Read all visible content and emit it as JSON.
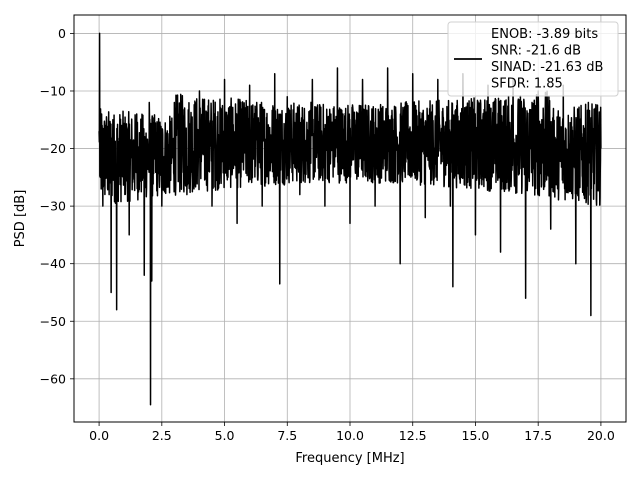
{
  "chart_data": {
    "type": "line",
    "title": "",
    "xlabel": "Frequency [MHz]",
    "ylabel": "PSD [dB]",
    "xlim": [
      -1.0,
      21.0
    ],
    "ylim": [
      -67.5,
      3.2
    ],
    "xticks": [
      0.0,
      2.5,
      5.0,
      7.5,
      10.0,
      12.5,
      15.0,
      17.5,
      20.0
    ],
    "xtick_labels": [
      "0.0",
      "2.5",
      "5.0",
      "7.5",
      "10.0",
      "12.5",
      "15.0",
      "17.5",
      "20.0"
    ],
    "yticks": [
      0,
      -10,
      -20,
      -30,
      -40,
      -50,
      -60
    ],
    "ytick_labels": [
      "0",
      "−10",
      "−20",
      "−30",
      "−40",
      "−50",
      "−60"
    ],
    "grid": true,
    "legend_position": "top-right",
    "series": [
      {
        "color": "#000000",
        "x": [
          0.0,
          0.02,
          0.05,
          0.1,
          0.15,
          0.25,
          0.4,
          0.48,
          0.55,
          0.7,
          0.9,
          1.2,
          1.5,
          1.8,
          2.0,
          2.05,
          2.1,
          2.2,
          2.5,
          3.0,
          3.5,
          4.0,
          4.5,
          5.0,
          5.5,
          6.0,
          6.5,
          7.0,
          7.2,
          7.5,
          8.0,
          8.5,
          9.0,
          9.5,
          10.0,
          10.5,
          11.0,
          11.5,
          12.0,
          12.5,
          13.0,
          13.5,
          14.0,
          14.1,
          14.5,
          15.0,
          15.5,
          16.0,
          16.5,
          17.0,
          17.5,
          18.0,
          18.5,
          19.0,
          19.5,
          19.6,
          20.0
        ],
        "y": [
          -17.0,
          0.0,
          -25.0,
          -14.0,
          -30.0,
          -16.0,
          -28.0,
          -45.0,
          -15.0,
          -48.0,
          -16.0,
          -35.0,
          -14.0,
          -42.0,
          -12.0,
          -64.5,
          -43.0,
          -15.0,
          -30.0,
          -12.0,
          -28.0,
          -10.0,
          -30.0,
          -8.0,
          -33.0,
          -9.0,
          -30.0,
          -7.0,
          -43.5,
          -11.0,
          -28.0,
          -8.0,
          -30.0,
          -6.0,
          -33.0,
          -8.0,
          -30.0,
          -6.0,
          -40.0,
          -7.0,
          -32.0,
          -8.0,
          -30.0,
          -44.0,
          -7.0,
          -35.0,
          -9.0,
          -38.0,
          -8.0,
          -46.0,
          -10.0,
          -34.0,
          -9.0,
          -40.0,
          -12.0,
          -49.0,
          -20.0
        ]
      }
    ],
    "legend_entries": [
      "ENOB: -3.89 bits",
      "SNR: -21.6 dB",
      "SINAD: -21.63 dB",
      "SFDR: 1.85"
    ]
  }
}
